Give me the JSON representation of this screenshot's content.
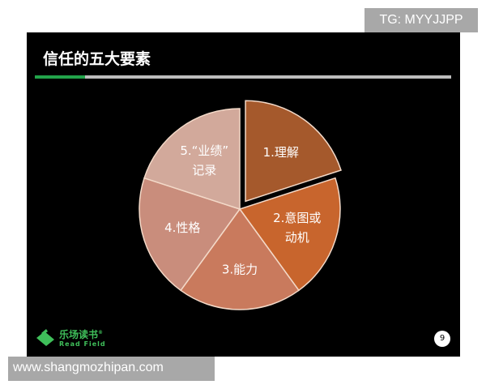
{
  "watermark_top": "TG: MYYJJPP",
  "watermark_bottom": "www.shangmozhipan.com",
  "slide": {
    "title": "信任的五大要素",
    "progress": 0.12,
    "logo": {
      "cn": "乐场读书",
      "en": "Read Field",
      "mark": "®"
    },
    "page_number": "9"
  },
  "chart_data": {
    "type": "pie",
    "categories": [
      "1.理解",
      "2.意图或动机",
      "3.能力",
      "4.性格",
      "5.“业绩”记录"
    ],
    "label_lines": [
      [
        "1.理解"
      ],
      [
        "2.意图或",
        "动机"
      ],
      [
        "3.能力"
      ],
      [
        "4.性格"
      ],
      [
        "5.“业绩”",
        "记录"
      ]
    ],
    "values": [
      20,
      20,
      20,
      20,
      20
    ],
    "exploded": [
      true,
      false,
      false,
      false,
      false
    ],
    "colors": [
      "#a5592c",
      "#c8652d",
      "#c97a5d",
      "#c98d7c",
      "#d2a99b"
    ],
    "start": "12 o'clock, clockwise"
  }
}
